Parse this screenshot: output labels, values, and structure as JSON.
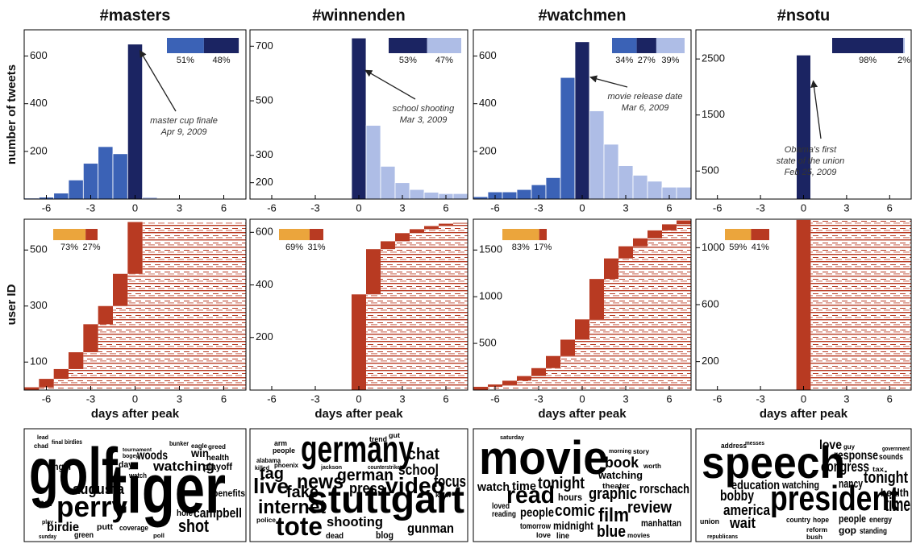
{
  "chart_data": [
    {
      "type": "bar",
      "title": "#masters",
      "ylabel": "number of tweets",
      "xlim": [
        -7.5,
        7.5
      ],
      "xticks": [
        -6,
        -3,
        0,
        3,
        6
      ],
      "ylim": [
        0,
        710
      ],
      "yticks": [
        200,
        400,
        600
      ],
      "series": [
        {
          "color": "#3b62b6",
          "x": [
            -7,
            -6,
            -5,
            -4,
            -3,
            -2,
            -1
          ],
          "values": [
            4,
            8,
            25,
            80,
            150,
            220,
            190
          ]
        },
        {
          "color": "#1b2462",
          "x": [
            0
          ],
          "values": [
            650
          ]
        },
        {
          "color": "#aebde6",
          "x": [
            1,
            2,
            3,
            4,
            5,
            6,
            7
          ],
          "values": [
            8,
            2,
            1,
            1,
            1,
            1,
            1
          ]
        }
      ],
      "inset": {
        "values": [
          51,
          48
        ],
        "value_labels": [
          "51%",
          "48%"
        ],
        "colors": [
          "#3b62b6",
          "#1b2462"
        ]
      },
      "annotation": [
        "master cup finale",
        "Apr 9, 2009"
      ]
    },
    {
      "type": "bar",
      "title": "#winnenden",
      "xlim": [
        -7.5,
        7.5
      ],
      "xticks": [
        -6,
        -3,
        0,
        3,
        6
      ],
      "ylim": [
        140,
        760
      ],
      "yticks": [
        200,
        300,
        500,
        700
      ],
      "series": [
        {
          "color": "#1b2462",
          "x": [
            0
          ],
          "values": [
            730
          ]
        },
        {
          "color": "#aebde6",
          "x": [
            1,
            2,
            3,
            4,
            5,
            6,
            7
          ],
          "values": [
            410,
            260,
            200,
            175,
            165,
            160,
            160
          ]
        }
      ],
      "inset": {
        "values": [
          53,
          47
        ],
        "value_labels": [
          "53%",
          "47%"
        ],
        "colors": [
          "#1b2462",
          "#aebde6"
        ]
      },
      "annotation": [
        "school shooting",
        "Mar 3, 2009"
      ]
    },
    {
      "type": "bar",
      "title": "#watchmen",
      "xlim": [
        -7.5,
        7.5
      ],
      "xticks": [
        -6,
        -3,
        0,
        3,
        6
      ],
      "ylim": [
        0,
        710
      ],
      "yticks": [
        200,
        400,
        600
      ],
      "series": [
        {
          "color": "#3b62b6",
          "x": [
            -7,
            -6,
            -5,
            -4,
            -3,
            -2,
            -1
          ],
          "values": [
            10,
            30,
            30,
            40,
            60,
            90,
            510
          ]
        },
        {
          "color": "#1b2462",
          "x": [
            0
          ],
          "values": [
            660
          ]
        },
        {
          "color": "#aebde6",
          "x": [
            1,
            2,
            3,
            4,
            5,
            6,
            7
          ],
          "values": [
            370,
            230,
            140,
            100,
            75,
            50,
            50
          ]
        }
      ],
      "inset": {
        "values": [
          34,
          27,
          39
        ],
        "value_labels": [
          "34%",
          "27%",
          "39%"
        ],
        "colors": [
          "#3b62b6",
          "#1b2462",
          "#aebde6"
        ]
      },
      "annotation": [
        "movie release date",
        "Mar 6, 2009"
      ]
    },
    {
      "type": "bar",
      "title": "#nsotu",
      "xlim": [
        -7.5,
        7.5
      ],
      "xticks": [
        -6,
        -3,
        0,
        3,
        6
      ],
      "ylim": [
        0,
        3020
      ],
      "yticks": [
        500,
        1500,
        2500
      ],
      "series": [
        {
          "color": "#1b2462",
          "x": [
            0
          ],
          "values": [
            2570
          ]
        },
        {
          "color": "#aebde6",
          "x": [
            1,
            2,
            3,
            4,
            5,
            6,
            7
          ],
          "values": [
            10,
            10,
            10,
            10,
            10,
            10,
            10
          ]
        }
      ],
      "inset": {
        "values": [
          98,
          2
        ],
        "value_labels": [
          "98%",
          "2%"
        ],
        "colors": [
          "#1b2462",
          "#aebde6"
        ]
      },
      "annotation": [
        "Obama's first",
        "state of the union",
        "Feb 25, 2009"
      ]
    },
    {
      "type": "raster",
      "ylabel": "user ID",
      "xlabel": "days after peak",
      "color": "#b83a22",
      "xlim": [
        -7.5,
        7.5
      ],
      "xticks": [
        -6,
        -3,
        0,
        3,
        6
      ],
      "ylim": [
        0,
        610
      ],
      "yticks": [
        100,
        300,
        500
      ],
      "x": [
        -7,
        -6,
        -5,
        -4,
        -3,
        -2,
        -1,
        0
      ],
      "values": [
        10,
        30,
        35,
        60,
        100,
        65,
        115,
        185
      ],
      "inset": {
        "values": [
          73,
          27
        ],
        "value_labels": [
          "73%",
          "27%"
        ],
        "colors": [
          "#eba53c",
          "#b83a22"
        ]
      }
    },
    {
      "type": "raster",
      "xlabel": "days after peak",
      "color": "#b83a22",
      "xlim": [
        -7.5,
        7.5
      ],
      "xticks": [
        -6,
        -3,
        0,
        3,
        6
      ],
      "ylim": [
        0,
        650
      ],
      "yticks": [
        200,
        400,
        600
      ],
      "x": [
        0,
        1,
        2,
        3,
        4,
        5,
        6,
        7
      ],
      "values": [
        364,
        172,
        30,
        31,
        15,
        12,
        9,
        3
      ],
      "inset": {
        "values": [
          69,
          31
        ],
        "value_labels": [
          "69%",
          "31%"
        ],
        "colors": [
          "#eba53c",
          "#b83a22"
        ]
      }
    },
    {
      "type": "raster",
      "xlabel": "days after peak",
      "color": "#b83a22",
      "xlim": [
        -7.5,
        7.5
      ],
      "xticks": [
        -6,
        -3,
        0,
        3,
        6
      ],
      "ylim": [
        0,
        1830
      ],
      "yticks": [
        500,
        1000,
        1500
      ],
      "x": [
        -7,
        -6,
        -5,
        -4,
        -3,
        -2,
        -1,
        0,
        1,
        2,
        3,
        4,
        5,
        6,
        7
      ],
      "values": [
        35,
        25,
        40,
        50,
        85,
        130,
        175,
        217,
        433,
        220,
        130,
        85,
        85,
        65,
        42
      ],
      "inset": {
        "values": [
          83,
          17
        ],
        "value_labels": [
          "83%",
          "17%"
        ],
        "colors": [
          "#eba53c",
          "#b83a22"
        ]
      }
    },
    {
      "type": "raster",
      "xlabel": "days after peak",
      "color": "#b83a22",
      "xlim": [
        -7.5,
        7.5
      ],
      "xticks": [
        -6,
        -3,
        0,
        3,
        6
      ],
      "ylim": [
        0,
        1200
      ],
      "yticks": [
        200,
        600,
        1000
      ],
      "x": [
        0
      ],
      "values": [
        1195
      ],
      "inset": {
        "values": [
          59,
          41
        ],
        "value_labels": [
          "59%",
          "41%"
        ],
        "colors": [
          "#eba53c",
          "#b83a22"
        ]
      }
    }
  ],
  "word_clouds": [
    {
      "words": [
        "golf",
        "tiger",
        "perry",
        "augusta",
        "watching",
        "woods",
        "win",
        "health",
        "playoff",
        "benefits",
        "hole",
        "campbell",
        "shot",
        "birdie",
        "par",
        "angel",
        "day",
        "putt",
        "green",
        "watch",
        "chad",
        "lead",
        "final",
        "birdies",
        "eagle",
        "greed",
        "bunker",
        "tournament",
        "bogey",
        "coverage",
        "poll",
        "sunday",
        "play"
      ]
    },
    {
      "words": [
        "germany",
        "stuttgart",
        "news",
        "live",
        "tag",
        "fake",
        "internet",
        "tote",
        "shooting",
        "video",
        "focus",
        "chat",
        "school",
        "press",
        "german",
        "gunman",
        "dead",
        "blog",
        "trend",
        "gut",
        "arm",
        "people",
        "alabama",
        "phoenix",
        "killed",
        "police",
        "counterstrike",
        "jackson",
        "killer"
      ]
    },
    {
      "words": [
        "movie",
        "read",
        "book",
        "watching",
        "graphic",
        "rorschach",
        "review",
        "film",
        "comic",
        "blue",
        "people",
        "time",
        "watch",
        "tonight",
        "hours",
        "midnight",
        "tomorrow",
        "reading",
        "loved",
        "manhattan",
        "theater",
        "saturday",
        "morning",
        "story",
        "worth",
        "love",
        "line",
        "movies"
      ]
    },
    {
      "words": [
        "speech",
        "president",
        "time",
        "health",
        "tonight",
        "congress",
        "response",
        "love",
        "nancy",
        "education",
        "watching",
        "bobby",
        "america",
        "wait",
        "people",
        "energy",
        "gop",
        "standing",
        "address",
        "tax",
        "sounds",
        "government",
        "reform",
        "bush",
        "country",
        "hope",
        "republicans",
        "messes",
        "guy",
        "union"
      ]
    }
  ]
}
